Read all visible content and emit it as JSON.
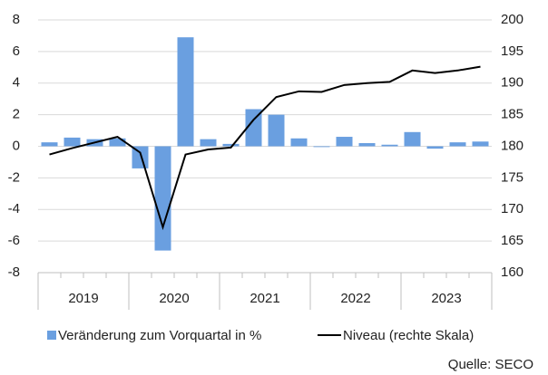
{
  "chart_data": {
    "type": "bar_line",
    "categories": [
      null,
      null,
      null,
      null,
      null,
      null,
      null,
      null,
      null,
      null,
      null,
      null,
      null,
      null,
      null,
      null,
      null,
      null,
      null,
      null
    ],
    "groups": [
      "2019",
      "2020",
      "2021",
      "2022",
      "2023"
    ],
    "series": [
      {
        "name": "Veränderung zum Vorquartal in %",
        "type": "bar",
        "color": "#6a9fe0",
        "values": [
          0.25,
          0.55,
          0.45,
          0.5,
          -1.4,
          -6.6,
          6.9,
          0.45,
          0.15,
          2.35,
          2.0,
          0.5,
          -0.05,
          0.6,
          0.2,
          0.1,
          0.9,
          -0.15,
          0.25,
          0.3
        ]
      },
      {
        "name": "Niveau (rechte Skala)",
        "type": "line",
        "color": "#000000",
        "axis": "y2",
        "values": [
          178.7,
          179.7,
          180.6,
          181.5,
          179.0,
          167.2,
          178.7,
          179.5,
          179.8,
          184.2,
          187.8,
          188.7,
          188.6,
          189.7,
          190.0,
          190.2,
          192.0,
          191.6,
          192.0,
          192.6
        ]
      }
    ],
    "ylim": [
      -8,
      8
    ],
    "yticks": [
      -8,
      -6,
      -4,
      -2,
      0,
      2,
      4,
      6,
      8
    ],
    "y2lim": [
      160,
      200
    ],
    "y2ticks": [
      160,
      165,
      170,
      175,
      180,
      185,
      190,
      195,
      200
    ],
    "grid": true,
    "source": "Quelle: SECO"
  }
}
